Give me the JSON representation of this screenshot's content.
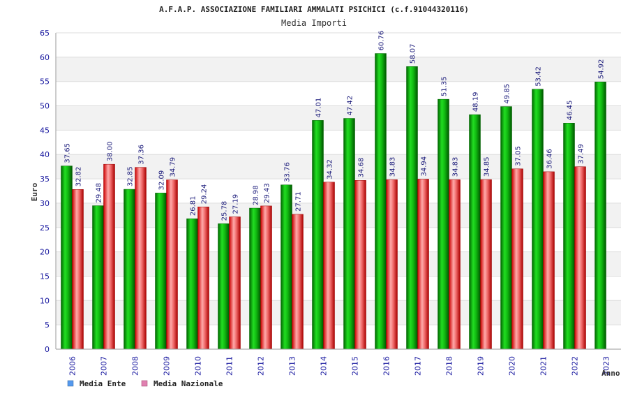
{
  "chart_data": {
    "type": "bar",
    "title": "A.F.A.P. ASSOCIAZIONE FAMILIARI AMMALATI PSICHICI (c.f.91044320116)",
    "subtitle": "Media Importi",
    "xlabel": "Anno",
    "ylabel": "Euro",
    "ylim": [
      0,
      65
    ],
    "yticks": [
      "0",
      "5",
      "10",
      "15",
      "20",
      "25",
      "30",
      "35",
      "40",
      "45",
      "50",
      "55",
      "60",
      "65"
    ],
    "categories": [
      "2006",
      "2007",
      "2008",
      "2009",
      "2010",
      "2011",
      "2012",
      "2013",
      "2014",
      "2015",
      "2016",
      "2017",
      "2018",
      "2019",
      "2020",
      "2021",
      "2022",
      "2023"
    ],
    "series": [
      {
        "name": "Media Ente",
        "color": "#00aa00",
        "values": [
          37.65,
          29.48,
          32.85,
          32.09,
          26.81,
          25.78,
          28.98,
          33.76,
          47.01,
          47.42,
          60.76,
          58.07,
          51.35,
          48.19,
          49.85,
          53.42,
          46.45,
          54.92
        ],
        "labels": [
          "37.65",
          "29.48",
          "32.85",
          "32.09",
          "26.81",
          "25.78",
          "28.98",
          "33.76",
          "47.01",
          "47.42",
          "60.76",
          "58.07",
          "51.35",
          "48.19",
          "49.85",
          "53.42",
          "46.45",
          "54.92"
        ]
      },
      {
        "name": "Media Nazionale",
        "color": "#e02020",
        "values": [
          32.82,
          38.0,
          37.36,
          34.79,
          29.24,
          27.19,
          29.43,
          27.71,
          34.32,
          34.68,
          34.83,
          34.94,
          34.83,
          34.85,
          37.05,
          36.46,
          37.49,
          null
        ],
        "labels": [
          "32.82",
          "38.00",
          "37.36",
          "34.79",
          "29.24",
          "27.19",
          "29.43",
          "27.71",
          "34.32",
          "34.68",
          "34.83",
          "34.94",
          "34.83",
          "34.85",
          "37.05",
          "36.46",
          "37.49",
          null
        ]
      }
    ],
    "legend": [
      {
        "label": "Media Ente",
        "color": "#5599ee"
      },
      {
        "label": "Media Nazionale",
        "color": "#e080b0"
      }
    ],
    "grid": true
  }
}
